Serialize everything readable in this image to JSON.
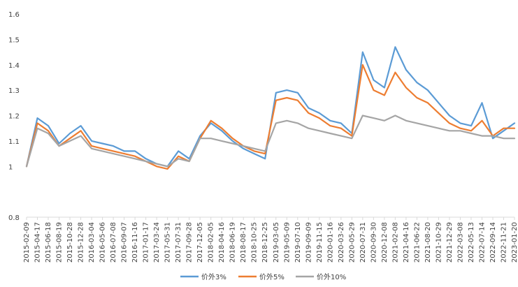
{
  "chart_data": {
    "type": "line",
    "title": "",
    "xlabel": "",
    "ylabel": "",
    "ylim": [
      0.8,
      1.6
    ],
    "yticks": [
      "0.8",
      "1",
      "1.1",
      "1.2",
      "1.3",
      "1.4",
      "1.5",
      "1.6"
    ],
    "grid": false,
    "legend": "bottom-center",
    "x_tick_labels": [
      "2015-02-09",
      "2015-04-17",
      "2015-06-18",
      "2015-08-19",
      "2015-10-28",
      "2015-12-28",
      "2016-03-04",
      "2016-05-06",
      "2016-07-08",
      "2016-09-07",
      "2016-11-16",
      "2017-01-17",
      "2017-03-24",
      "2017-05-31",
      "2017-07-31",
      "2017-09-28",
      "2017-12-05",
      "2018-02-05",
      "2018-04-16",
      "2018-06-19",
      "2018-08-17",
      "2018-10-25",
      "2018-12-25",
      "2019-03-05",
      "2019-05-09",
      "2019-07-10",
      "2019-09-09",
      "2019-11-15",
      "2020-01-16",
      "2020-03-26",
      "2020-05-29",
      "2020-07-31",
      "2020-09-30",
      "2020-12-08",
      "2021-02-08",
      "2021-04-16",
      "2021-06-22",
      "2021-08-20",
      "2021-10-29",
      "2021-12-29",
      "2022-03-08",
      "2022-05-13",
      "2022-07-14",
      "2022-09-14",
      "2022-11-21",
      "2023-01-20"
    ],
    "series": [
      {
        "name": "价外3%",
        "color": "#5b9bd5",
        "values": [
          1.0,
          1.19,
          1.16,
          1.09,
          1.13,
          1.16,
          1.1,
          1.09,
          1.08,
          1.06,
          1.06,
          1.03,
          1.01,
          1.0,
          1.06,
          1.03,
          1.12,
          1.17,
          1.14,
          1.1,
          1.07,
          1.05,
          1.03,
          1.29,
          1.3,
          1.29,
          1.23,
          1.21,
          1.18,
          1.17,
          1.13,
          1.45,
          1.34,
          1.31,
          1.47,
          1.38,
          1.33,
          1.3,
          1.25,
          1.2,
          1.17,
          1.16,
          1.25,
          1.11,
          1.14,
          1.17
        ]
      },
      {
        "name": "价外5%",
        "color": "#ed7d31",
        "values": [
          1.0,
          1.17,
          1.14,
          1.08,
          1.11,
          1.14,
          1.08,
          1.07,
          1.06,
          1.05,
          1.04,
          1.02,
          1.0,
          0.99,
          1.04,
          1.02,
          1.11,
          1.18,
          1.15,
          1.11,
          1.08,
          1.06,
          1.05,
          1.26,
          1.27,
          1.26,
          1.21,
          1.19,
          1.16,
          1.15,
          1.12,
          1.4,
          1.3,
          1.28,
          1.37,
          1.31,
          1.27,
          1.25,
          1.21,
          1.17,
          1.15,
          1.14,
          1.18,
          1.12,
          1.15,
          1.15
        ]
      },
      {
        "name": "价外10%",
        "color": "#a5a5a5",
        "values": [
          1.0,
          1.15,
          1.13,
          1.08,
          1.1,
          1.12,
          1.07,
          1.06,
          1.05,
          1.04,
          1.03,
          1.02,
          1.01,
          1.0,
          1.03,
          1.02,
          1.11,
          1.11,
          1.1,
          1.09,
          1.08,
          1.07,
          1.06,
          1.17,
          1.18,
          1.17,
          1.15,
          1.14,
          1.13,
          1.12,
          1.11,
          1.2,
          1.19,
          1.18,
          1.2,
          1.18,
          1.17,
          1.16,
          1.15,
          1.14,
          1.14,
          1.13,
          1.12,
          1.12,
          1.11,
          1.11
        ]
      }
    ]
  }
}
